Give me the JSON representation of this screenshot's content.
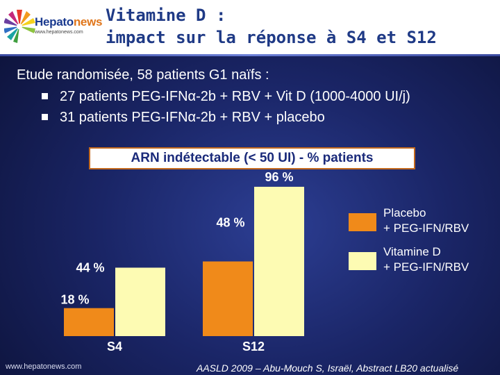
{
  "header": {
    "logo_text_main": "Hepato",
    "logo_text_accent": "news",
    "logo_url": "www.hepatonews.com",
    "title_line1": "Vitamine D :",
    "title_line2": "impact sur la réponse à S4 et S12"
  },
  "body": {
    "intro": "Etude randomisée, 58 patients G1 naïfs :",
    "bullets": [
      "27 patients  PEG-IFNα-2b + RBV + Vit D (1000-4000 UI/j)",
      "31 patients  PEG-IFNα-2b + RBV + placebo"
    ]
  },
  "chart_data": {
    "type": "bar",
    "title": "ARN indétectable (< 50 UI) - % patients",
    "categories": [
      "S4",
      "S12"
    ],
    "series": [
      {
        "name": "Placebo\n+ PEG-IFN/RBV",
        "legend_lines": [
          "Placebo",
          "+ PEG-IFN/RBV"
        ],
        "values": [
          18,
          48
        ],
        "labels": [
          "18 %",
          "48 %"
        ],
        "color": "#f08a1a"
      },
      {
        "name": "Vitamine D\n+ PEG-IFN/RBV",
        "legend_lines": [
          "Vitamine D",
          "+ PEG-IFN/RBV"
        ],
        "values": [
          44,
          96
        ],
        "labels": [
          "44 %",
          "96 %"
        ],
        "color": "#fdfbb3"
      }
    ],
    "ylim": [
      0,
      100
    ],
    "grid": false,
    "legend": "right"
  },
  "footer": {
    "url": "www.hepatonews.com",
    "citation": "AASLD 2009 – Abu-Mouch S, Israël, Abstract LB20 actualisé"
  },
  "colors": {
    "title": "#1f3a86",
    "placebo": "#f08a1a",
    "vitamine": "#fdfbb3"
  }
}
